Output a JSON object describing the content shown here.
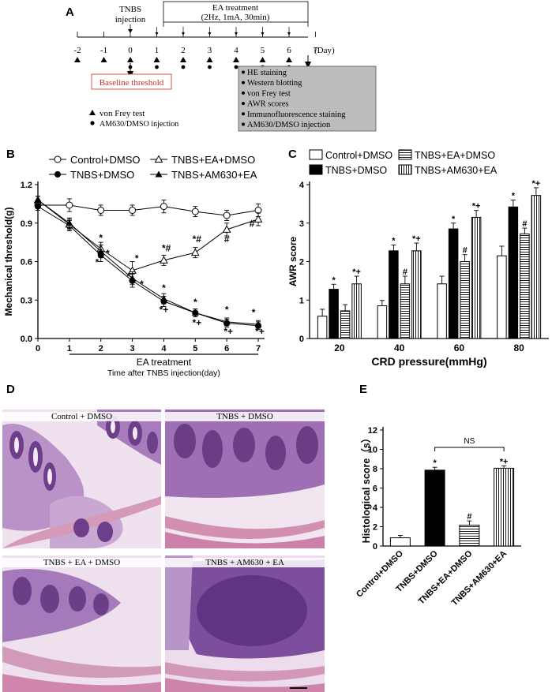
{
  "panels": {
    "a": "A",
    "b": "B",
    "c": "C",
    "d": "D",
    "e": "E"
  },
  "timeline": {
    "tnbs_line1": "TNBS",
    "tnbs_line2": "injection",
    "ea_line1": "EA treatment",
    "ea_line2": "(2Hz, 1mA, 30min)",
    "days": [
      "-2",
      "-1",
      "0",
      "1",
      "2",
      "3",
      "4",
      "5",
      "6",
      "7"
    ],
    "day_unit": "(Day)",
    "vonfrey_days": [
      "-2",
      "-1",
      "0",
      "1",
      "2",
      "3",
      "4",
      "5",
      "6"
    ],
    "injection_days": [
      "0",
      "1",
      "2",
      "3",
      "4",
      "5",
      "6"
    ],
    "baseline": "Baseline threshold",
    "legend_vonfrey": "von Frey test",
    "legend_injection": "AM630/DMSO injection",
    "assays": [
      "HE staining",
      "Western blotting",
      "von Frey test",
      "AWR scores",
      "Immunofluorescence staining",
      "AM630/DMSO injection"
    ]
  },
  "chart_data": [
    {
      "id": "B",
      "type": "line",
      "ylabel": "Mechanical threshold(g)",
      "xlabel_top": "EA treatment",
      "xlabel": "Time after TNBS injection(day)",
      "x": [
        0,
        1,
        2,
        3,
        4,
        5,
        6,
        7
      ],
      "xticks": [
        "0",
        "1",
        "2",
        "3",
        "4",
        "5",
        "6",
        "7"
      ],
      "ylim": [
        0.0,
        1.2
      ],
      "yticks": [
        "0.0",
        "0.3",
        "0.6",
        "0.9",
        "1.2"
      ],
      "legend_placement": "top",
      "series": [
        {
          "name": "Control+DMSO",
          "marker": "open-circle",
          "values": [
            1.04,
            1.04,
            1.0,
            1.0,
            1.03,
            0.99,
            0.96,
            1.0
          ],
          "errors": [
            0.04,
            0.05,
            0.04,
            0.04,
            0.05,
            0.04,
            0.04,
            0.05
          ]
        },
        {
          "name": "TNBS+DMSO",
          "marker": "filled-circle",
          "values": [
            1.03,
            0.88,
            0.65,
            0.45,
            0.29,
            0.2,
            0.12,
            0.1
          ],
          "errors": [
            0.03,
            0.04,
            0.05,
            0.05,
            0.04,
            0.03,
            0.03,
            0.03
          ]
        },
        {
          "name": "TNBS+EA+DMSO",
          "marker": "open-triangle",
          "values": [
            1.08,
            0.89,
            0.7,
            0.53,
            0.61,
            0.67,
            0.85,
            0.93
          ],
          "errors": [
            0.03,
            0.04,
            0.05,
            0.07,
            0.04,
            0.04,
            0.05,
            0.05
          ]
        },
        {
          "name": "TNBS+AM630+EA",
          "marker": "filled-triangle",
          "values": [
            1.08,
            0.9,
            0.68,
            0.47,
            0.31,
            0.2,
            0.13,
            0.11
          ],
          "errors": [
            0.03,
            0.04,
            0.05,
            0.05,
            0.04,
            0.03,
            0.03,
            0.03
          ]
        }
      ],
      "annotations": [
        {
          "x": 2,
          "y": 0.76,
          "text": "*"
        },
        {
          "x": 2.22,
          "y": 0.64,
          "text": "*"
        },
        {
          "x": 1.88,
          "y": 0.57,
          "text": "*"
        },
        {
          "x": 3.14,
          "y": 0.6,
          "text": "*"
        },
        {
          "x": 3.3,
          "y": 0.4,
          "text": "*"
        },
        {
          "x": 2.88,
          "y": 0.46,
          "text": "*"
        },
        {
          "x": 4.08,
          "y": 0.68,
          "text": "*#"
        },
        {
          "x": 4,
          "y": 0.37,
          "text": "*"
        },
        {
          "x": 4,
          "y": 0.2,
          "text": "*+"
        },
        {
          "x": 5.05,
          "y": 0.75,
          "text": "*#"
        },
        {
          "x": 5,
          "y": 0.26,
          "text": "*"
        },
        {
          "x": 5.05,
          "y": 0.1,
          "text": "*+"
        },
        {
          "x": 6,
          "y": 0.75,
          "text": "#"
        },
        {
          "x": 6,
          "y": 0.2,
          "text": "*"
        },
        {
          "x": 6.05,
          "y": 0.03,
          "text": "*+"
        },
        {
          "x": 6.8,
          "y": 0.87,
          "text": "#"
        },
        {
          "x": 6.85,
          "y": 0.18,
          "text": "*"
        },
        {
          "x": 7.05,
          "y": 0.03,
          "text": "*+"
        }
      ]
    },
    {
      "id": "C",
      "type": "bar",
      "ylabel": "AWR score",
      "xlabel": "CRD  pressure(mmHg)",
      "categories": [
        "20",
        "40",
        "60",
        "80"
      ],
      "ylim": [
        0,
        4
      ],
      "yticks": [
        "0",
        "1",
        "2",
        "3",
        "4"
      ],
      "legend_placement": "top",
      "series": [
        {
          "name": "Control+DMSO",
          "fill": "white",
          "values": [
            0.58,
            0.85,
            1.42,
            2.15
          ],
          "errors": [
            0.18,
            0.14,
            0.2,
            0.25
          ],
          "labels": [
            "",
            "",
            "",
            ""
          ]
        },
        {
          "name": "TNBS+DMSO",
          "fill": "black",
          "values": [
            1.28,
            2.28,
            2.85,
            3.42
          ],
          "errors": [
            0.13,
            0.15,
            0.15,
            0.18
          ],
          "labels": [
            "*",
            "*",
            "*",
            "*"
          ]
        },
        {
          "name": "TNBS+EA+DMSO",
          "fill": "hlines",
          "values": [
            0.72,
            1.42,
            2.0,
            2.72
          ],
          "errors": [
            0.16,
            0.2,
            0.18,
            0.15
          ],
          "labels": [
            "",
            "#",
            "#",
            "#"
          ]
        },
        {
          "name": "TNBS+AM630+EA",
          "fill": "vlines",
          "values": [
            1.42,
            2.28,
            3.15,
            3.72
          ],
          "errors": [
            0.2,
            0.2,
            0.18,
            0.2
          ],
          "labels": [
            "*+",
            "*+",
            "*+",
            "*+"
          ]
        }
      ]
    },
    {
      "id": "E",
      "type": "bar",
      "ylabel": "Histological score（s）",
      "categories": [
        "Control+DMSO",
        "TNBS+DMSO",
        "TNBS+EA+DMSO",
        "TNBS+AM630+EA"
      ],
      "fills": [
        "white",
        "black",
        "hlines",
        "vlines"
      ],
      "values": [
        0.85,
        7.85,
        2.15,
        8.05
      ],
      "errors": [
        0.25,
        0.3,
        0.45,
        0.25
      ],
      "labels": [
        "",
        "*",
        "#",
        "*+"
      ],
      "ylim": [
        0,
        12
      ],
      "yticks": [
        "0",
        "2",
        "4",
        "6",
        "8",
        "10",
        "12"
      ],
      "bracket_label": "NS"
    }
  ],
  "histology": {
    "labels": [
      "Control + DMSO",
      "TNBS + DMSO",
      "TNBS + EA + DMSO",
      "TNBS + AM630 + EA"
    ]
  }
}
